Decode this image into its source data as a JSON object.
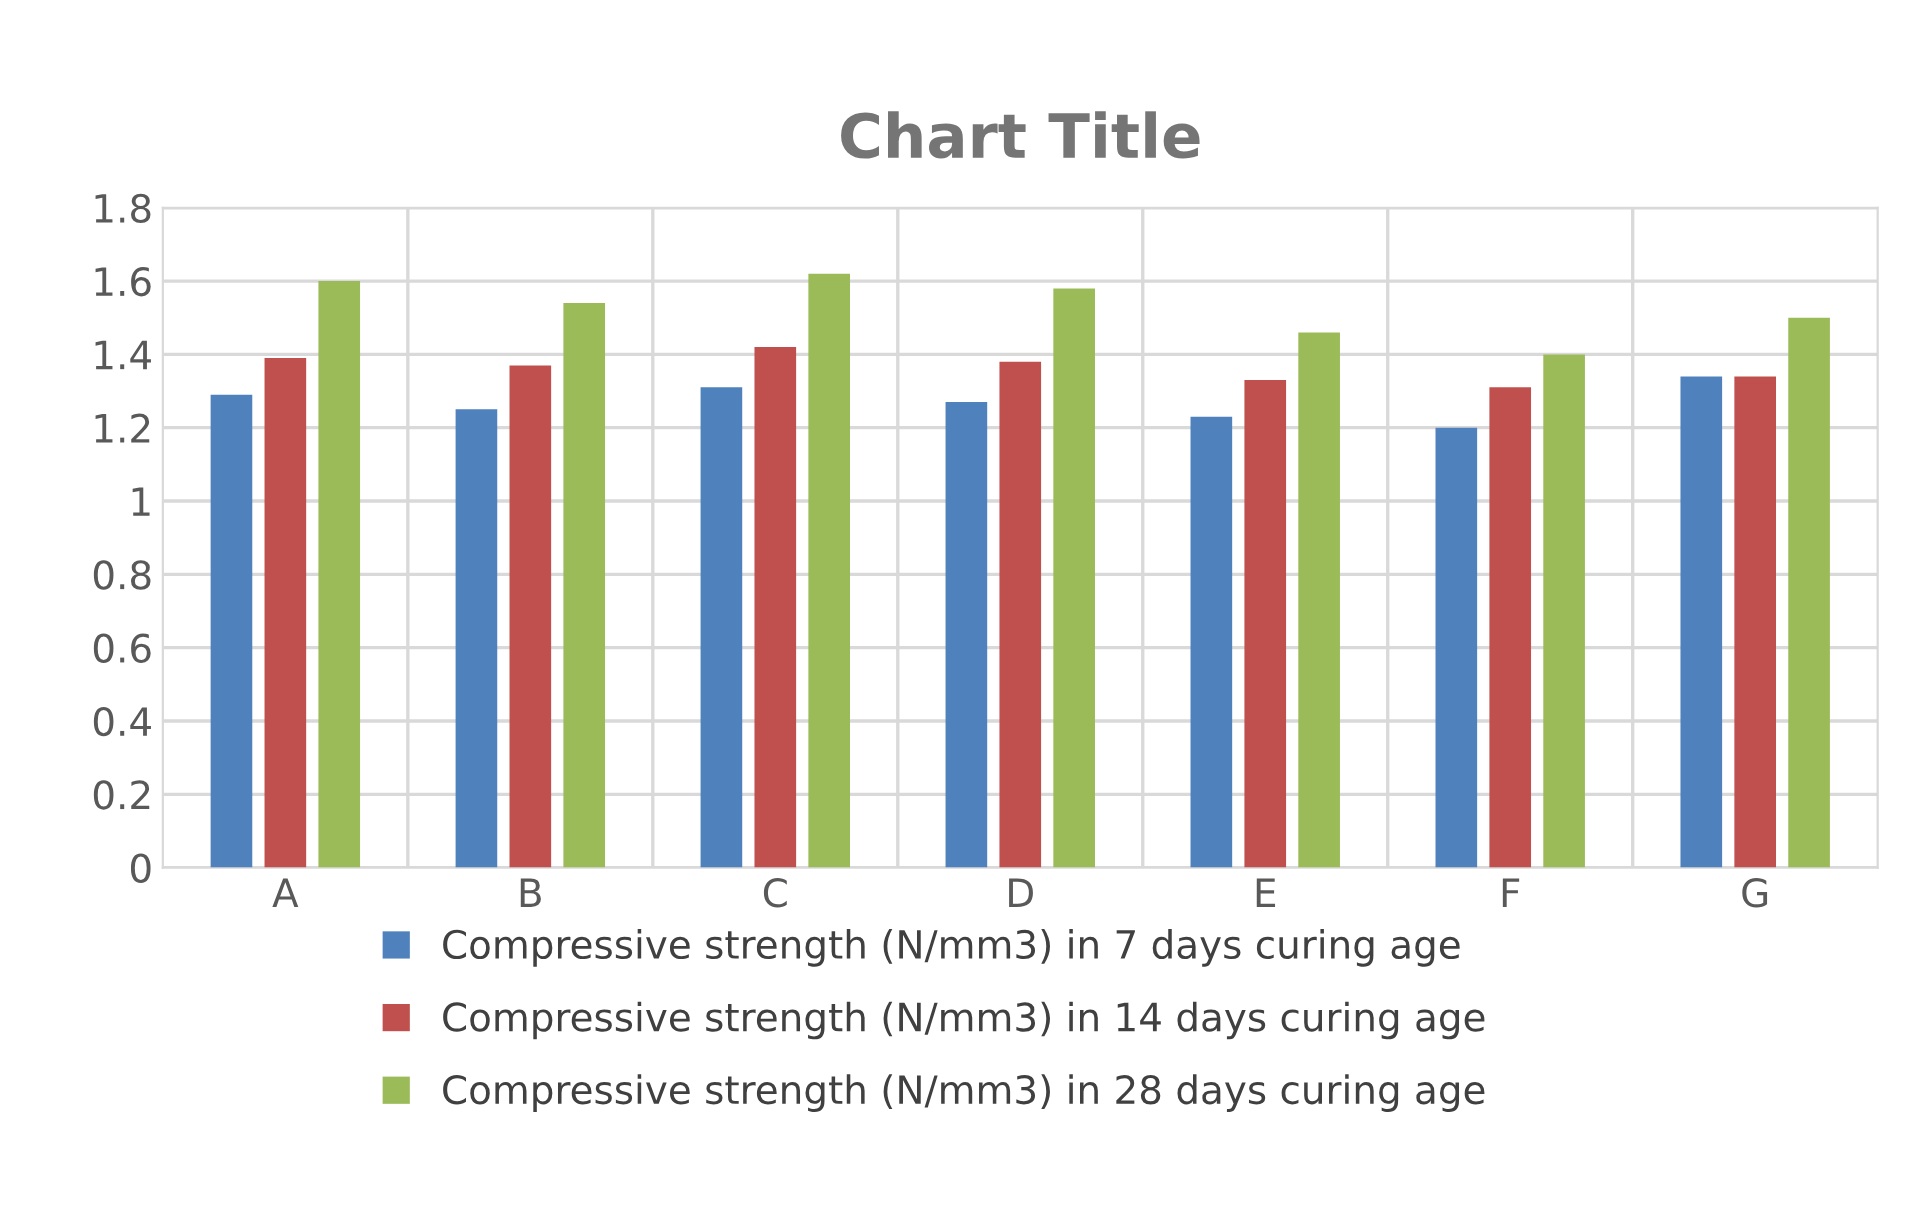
{
  "chart_data": {
    "type": "bar",
    "title": "Chart Title",
    "categories": [
      "A",
      "B",
      "C",
      "D",
      "E",
      "F",
      "G"
    ],
    "series": [
      {
        "name": "Compressive strength (N/mm3) in 7 days curing age",
        "color": "#4f81bd",
        "values": [
          1.29,
          1.25,
          1.31,
          1.27,
          1.23,
          1.2,
          1.34
        ]
      },
      {
        "name": "Compressive strength (N/mm3) in 14 days curing age",
        "color": "#c0504d",
        "values": [
          1.39,
          1.37,
          1.42,
          1.38,
          1.33,
          1.31,
          1.34
        ]
      },
      {
        "name": "Compressive strength (N/mm3) in 28 days curing age",
        "color": "#9bbb59",
        "values": [
          1.6,
          1.54,
          1.62,
          1.58,
          1.46,
          1.4,
          1.5
        ]
      }
    ],
    "ylim": [
      0,
      1.8
    ],
    "yticks": [
      0,
      {
        "value": 0.2,
        "label": "0.2"
      },
      {
        "value": 0.4,
        "label": "0.4"
      },
      {
        "value": 0.6,
        "label": "0.6"
      },
      {
        "value": 0.8,
        "label": "0.8"
      },
      1,
      {
        "value": 1.2,
        "label": "1.2"
      },
      {
        "value": 1.4,
        "label": "1.4"
      },
      {
        "value": 1.6,
        "label": "1.6"
      },
      {
        "value": 1.8,
        "label": "1.8"
      }
    ],
    "grid": true,
    "legend": "bottom"
  }
}
